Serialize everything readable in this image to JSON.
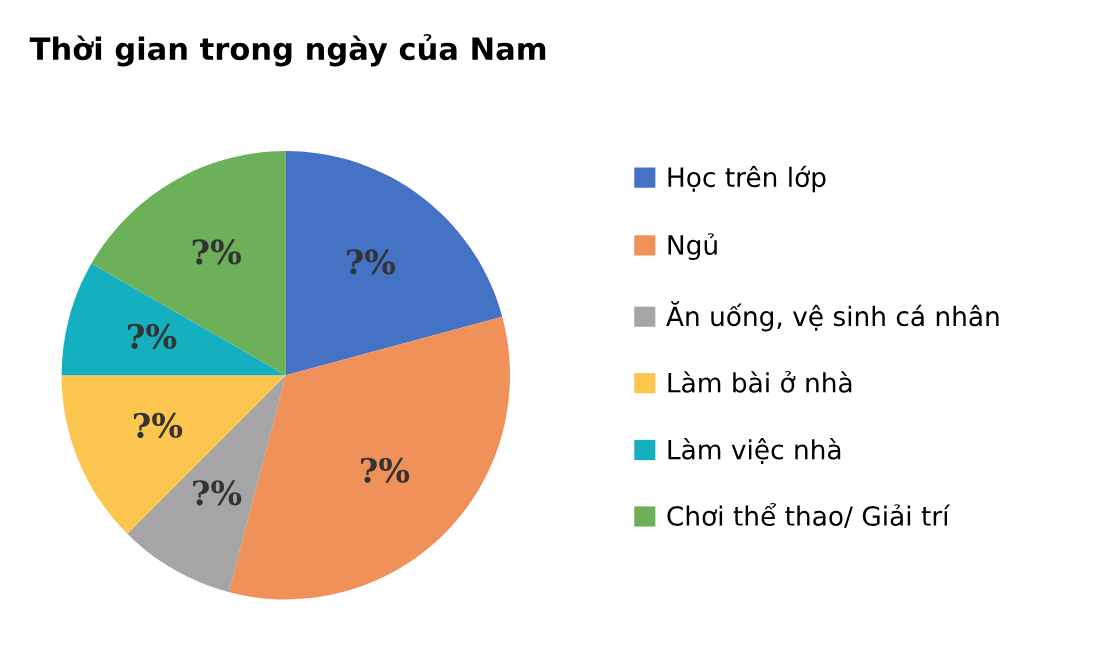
{
  "chart_data": {
    "type": "pie",
    "title": "Thời gian trong ngày của Nam",
    "categories": [
      "Học trên lớp",
      "Ngủ",
      "Ăn uống, vệ sinh cá nhân",
      "Làm bài ở nhà",
      "Làm việc nhà",
      "Chơi thể thao/ Giải trí"
    ],
    "values": [
      20.8,
      33.3,
      8.4,
      12.5,
      8.3,
      16.7
    ],
    "colors": [
      "#4472c4",
      "#f0915a",
      "#a5a5a5",
      "#fbc54e",
      "#14b0c0",
      "#6cb159"
    ],
    "value_labels": [
      "?%",
      "?%",
      "?%",
      "?%",
      "?%",
      "?%"
    ],
    "legend": "right"
  }
}
